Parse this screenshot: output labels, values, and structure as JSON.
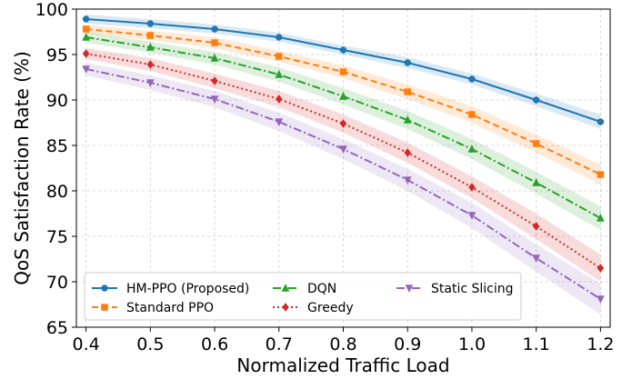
{
  "chart_data": {
    "type": "line",
    "title": "",
    "xlabel": "Normalized Traffic Load",
    "ylabel": "QoS Satisfaction Rate (%)",
    "xlim": [
      0.385,
      1.215
    ],
    "ylim": [
      65,
      100
    ],
    "x": [
      0.4,
      0.5,
      0.6,
      0.7,
      0.8,
      0.9,
      1.0,
      1.1,
      1.2
    ],
    "x_ticks": [
      "0.4",
      "0.5",
      "0.6",
      "0.7",
      "0.8",
      "0.9",
      "1.0",
      "1.1",
      "1.2"
    ],
    "y_ticks": [
      "65",
      "70",
      "75",
      "80",
      "85",
      "90",
      "95",
      "100"
    ],
    "grid": true,
    "legend_position": "lower-left",
    "series": [
      {
        "name": "HM-PPO (Proposed)",
        "color": "#1f77b4",
        "dash": "solid",
        "marker": "circle",
        "values": [
          98.9,
          98.4,
          97.8,
          96.9,
          95.5,
          94.1,
          92.3,
          90.0,
          87.6
        ],
        "band": [
          0.5,
          0.5,
          0.5,
          0.5,
          0.5,
          0.6,
          0.6,
          0.7,
          0.8
        ]
      },
      {
        "name": "Standard PPO",
        "color": "#ff7f0e",
        "dash": "dashed",
        "marker": "square",
        "values": [
          97.8,
          97.1,
          96.3,
          94.8,
          93.1,
          90.9,
          88.4,
          85.2,
          81.8
        ],
        "band": [
          0.5,
          0.5,
          0.6,
          0.6,
          0.7,
          0.8,
          0.9,
          1.0,
          1.1
        ]
      },
      {
        "name": "DQN",
        "color": "#2ca02c",
        "dash": "dashdot",
        "marker": "triangle-up",
        "values": [
          96.9,
          95.8,
          94.6,
          92.8,
          90.4,
          87.8,
          84.6,
          80.9,
          77.0
        ],
        "band": [
          0.6,
          0.6,
          0.7,
          0.8,
          0.9,
          1.0,
          1.1,
          1.2,
          1.3
        ]
      },
      {
        "name": "Greedy",
        "color": "#d62728",
        "dash": "dotted",
        "marker": "diamond",
        "values": [
          95.1,
          93.9,
          92.1,
          90.1,
          87.4,
          84.2,
          80.4,
          76.1,
          71.5
        ],
        "band": [
          0.6,
          0.7,
          0.8,
          0.9,
          1.0,
          1.1,
          1.2,
          1.4,
          1.5
        ]
      },
      {
        "name": "Static Slicing",
        "color": "#9467bd",
        "dash": "dashdot",
        "marker": "triangle-down",
        "values": [
          93.4,
          91.9,
          90.1,
          87.6,
          84.6,
          81.2,
          77.3,
          72.6,
          68.1
        ],
        "band": [
          0.7,
          0.8,
          0.9,
          1.0,
          1.1,
          1.2,
          1.4,
          1.5,
          1.7
        ]
      }
    ]
  }
}
